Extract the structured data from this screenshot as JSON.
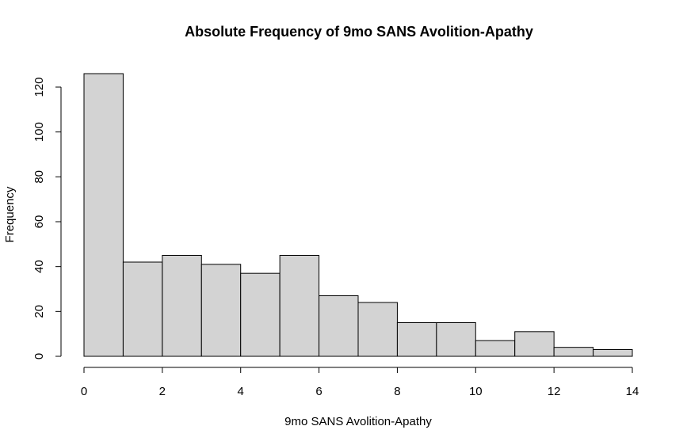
{
  "chart_data": {
    "type": "bar",
    "title": "Absolute Frequency of 9mo SANS Avolition-Apathy",
    "xlabel": "9mo SANS Avolition-Apathy",
    "ylabel": "Frequency",
    "bins": [
      {
        "start": 0,
        "end": 1,
        "value": 126
      },
      {
        "start": 1,
        "end": 2,
        "value": 42
      },
      {
        "start": 2,
        "end": 3,
        "value": 45
      },
      {
        "start": 3,
        "end": 4,
        "value": 41
      },
      {
        "start": 4,
        "end": 5,
        "value": 37
      },
      {
        "start": 5,
        "end": 6,
        "value": 45
      },
      {
        "start": 6,
        "end": 7,
        "value": 27
      },
      {
        "start": 7,
        "end": 8,
        "value": 24
      },
      {
        "start": 8,
        "end": 9,
        "value": 15
      },
      {
        "start": 9,
        "end": 10,
        "value": 15
      },
      {
        "start": 10,
        "end": 11,
        "value": 7
      },
      {
        "start": 11,
        "end": 12,
        "value": 11
      },
      {
        "start": 12,
        "end": 13,
        "value": 4
      },
      {
        "start": 13,
        "end": 14,
        "value": 3
      }
    ],
    "xlim": [
      0,
      14
    ],
    "ylim": [
      0,
      120
    ],
    "xticks": [
      "0",
      "2",
      "4",
      "6",
      "8",
      "10",
      "12",
      "14"
    ],
    "yticks": [
      "0",
      "20",
      "40",
      "60",
      "80",
      "100",
      "120"
    ],
    "bar_color": "#d3d3d3",
    "grid": false
  }
}
